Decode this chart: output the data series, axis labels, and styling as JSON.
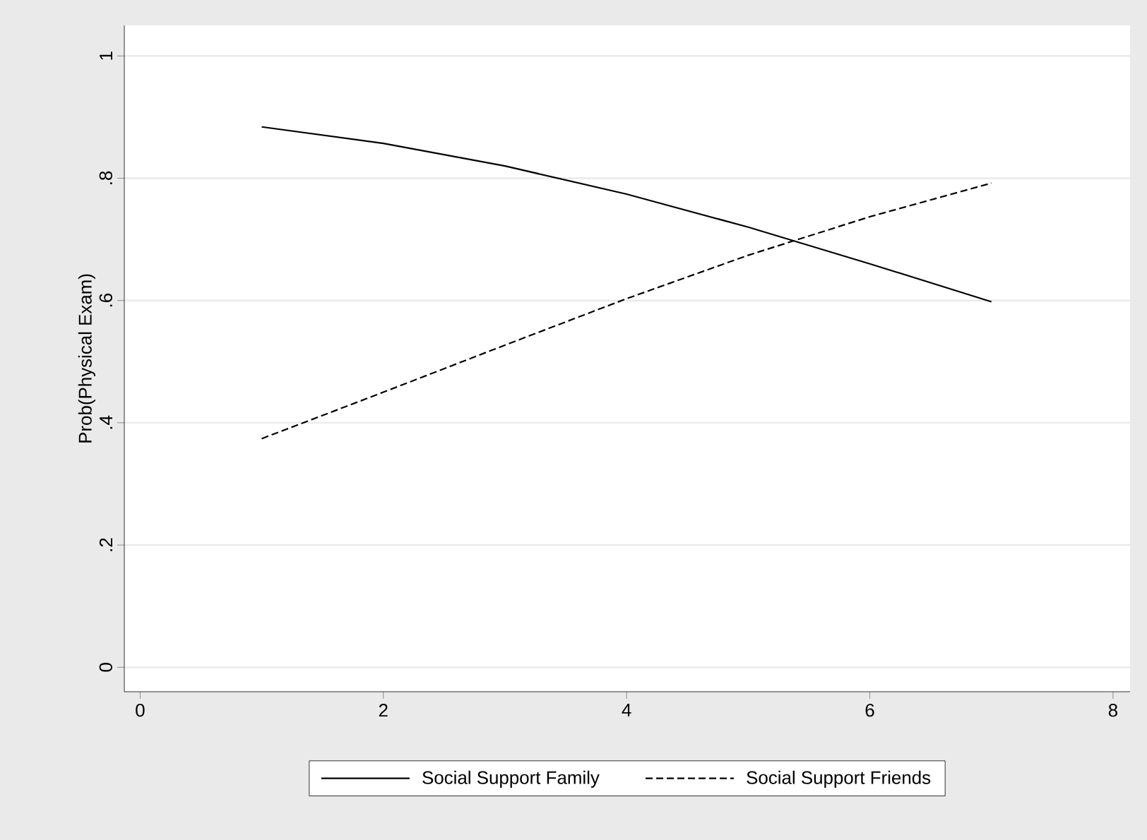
{
  "chart_data": {
    "type": "line",
    "ylabel": "Prob(Physical Exam)",
    "x": [
      1,
      2,
      3,
      4,
      5,
      6,
      7
    ],
    "series": [
      {
        "name": "Social Support Family",
        "color": "#000000",
        "line_style": "solid",
        "values": [
          0.884,
          0.857,
          0.82,
          0.774,
          0.72,
          0.66,
          0.598
        ]
      },
      {
        "name": "Social Support Friends",
        "color": "#000000",
        "line_style": "dashed",
        "values": [
          0.374,
          0.45,
          0.527,
          0.603,
          0.674,
          0.737,
          0.792
        ]
      }
    ],
    "xlim": [
      -0.13,
      8.14
    ],
    "ylim": [
      -0.04,
      1.05
    ],
    "xticks": [
      0,
      2,
      4,
      6,
      8
    ],
    "yticks": [
      0,
      {
        "value": 0.2,
        "label": ".2"
      },
      {
        "value": 0.4,
        "label": ".4"
      },
      {
        "value": 0.6,
        "label": ".6"
      },
      {
        "value": 0.8,
        "label": ".8"
      },
      1
    ],
    "grid": "y",
    "legend": "bottom",
    "marker": "none"
  }
}
